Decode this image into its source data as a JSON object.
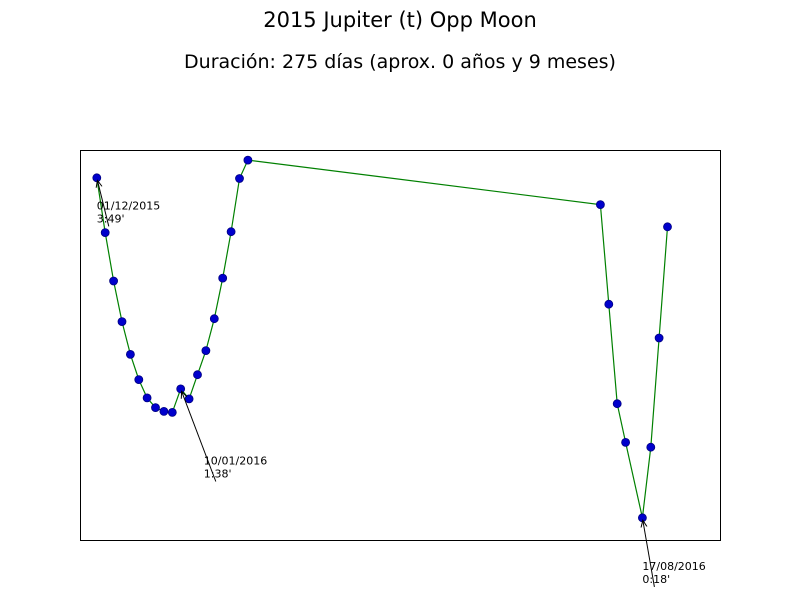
{
  "chart_data": {
    "type": "line",
    "title": "2015 Jupiter (t) Opp Moon",
    "subtitle": "Duración: 275 días (aprox. 0 años y 9 meses)",
    "xlabel": "",
    "ylabel": "",
    "xlim": [
      "2015-11-23",
      "2016-09-23"
    ],
    "ylim": [
      4.105,
      0.07
    ],
    "grid": false,
    "line_color": "#008000",
    "marker_face": "#0000cc",
    "marker_edge": "#000080",
    "series": [
      {
        "points": [
          {
            "x": "2015-12-01",
            "y": 3.817
          },
          {
            "x": "2015-12-05",
            "y": 3.25
          },
          {
            "x": "2015-12-09",
            "y": 2.75
          },
          {
            "x": "2015-12-13",
            "y": 2.33
          },
          {
            "x": "2015-12-17",
            "y": 1.99
          },
          {
            "x": "2015-12-21",
            "y": 1.73
          },
          {
            "x": "2015-12-25",
            "y": 1.54
          },
          {
            "x": "2015-12-29",
            "y": 1.44
          },
          {
            "x": "2016-01-02",
            "y": 1.4
          },
          {
            "x": "2016-01-06",
            "y": 1.39
          },
          {
            "x": "2016-01-10",
            "y": 1.633
          },
          {
            "x": "2016-01-14",
            "y": 1.53
          },
          {
            "x": "2016-01-18",
            "y": 1.78
          },
          {
            "x": "2016-01-22",
            "y": 2.03
          },
          {
            "x": "2016-01-26",
            "y": 2.36
          },
          {
            "x": "2016-01-30",
            "y": 2.78
          },
          {
            "x": "2016-02-03",
            "y": 3.26
          },
          {
            "x": "2016-02-07",
            "y": 3.81
          },
          {
            "x": "2016-02-11",
            "y": 4.0
          },
          {
            "x": "2016-07-28",
            "y": 3.54
          },
          {
            "x": "2016-08-01",
            "y": 2.51
          },
          {
            "x": "2016-08-05",
            "y": 1.48
          },
          {
            "x": "2016-08-09",
            "y": 1.08
          },
          {
            "x": "2016-08-17",
            "y": 0.3
          },
          {
            "x": "2016-08-21",
            "y": 1.03
          },
          {
            "x": "2016-08-25",
            "y": 2.16
          },
          {
            "x": "2016-08-29",
            "y": 3.31
          }
        ]
      }
    ],
    "annotations": [
      {
        "x": "2015-12-01",
        "y": 3.817,
        "line1": "01/12/2015",
        "line2": "3:49'",
        "text_x": "2015-12-01",
        "text_y": 3.47
      },
      {
        "x": "2016-01-10",
        "y": 1.633,
        "line1": "10/01/2016",
        "line2": "1:38'",
        "text_x": "2016-01-21",
        "text_y": 0.83
      },
      {
        "x": "2016-08-17",
        "y": 0.3,
        "line1": "17/08/2016",
        "line2": "0:18'",
        "text_x": "2016-08-17",
        "text_y": -0.26
      }
    ]
  }
}
